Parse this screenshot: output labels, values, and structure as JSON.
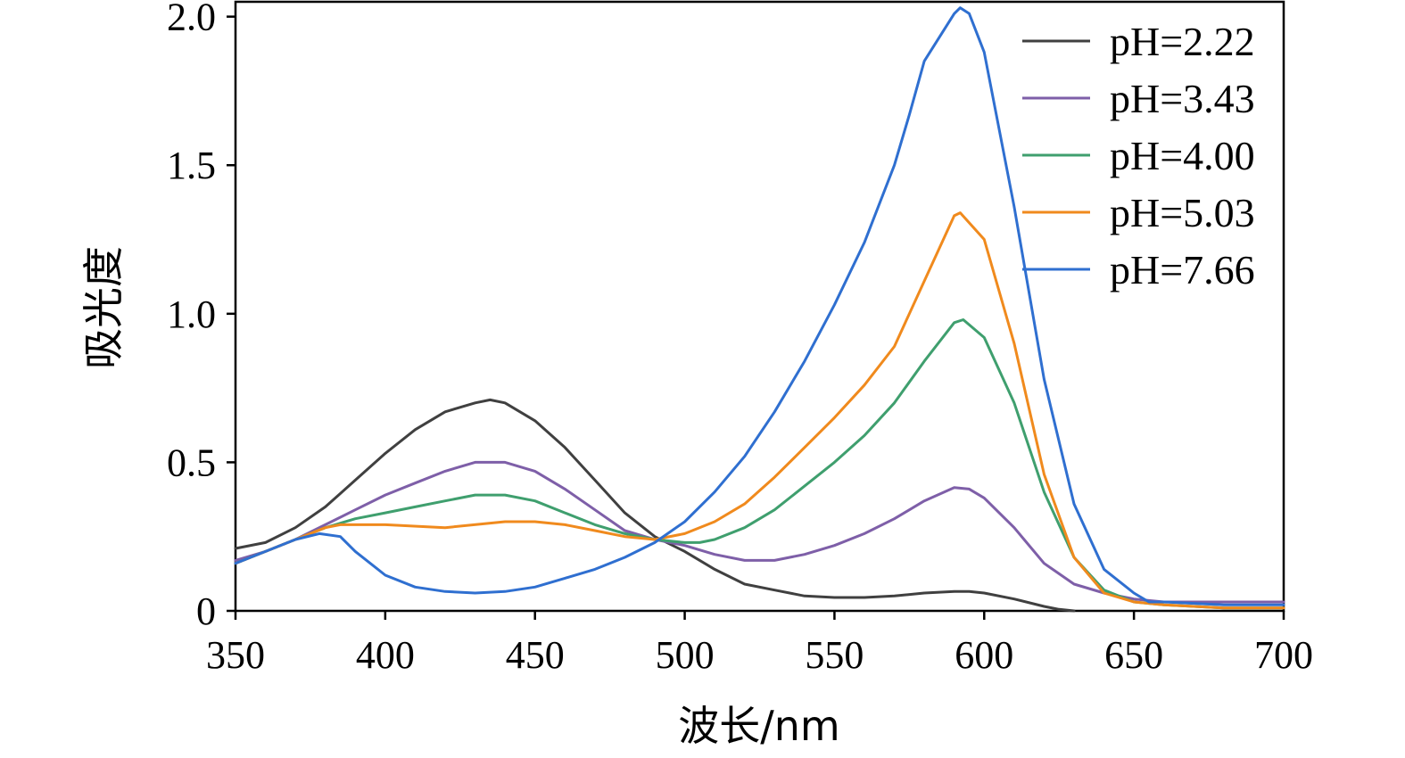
{
  "chart_data": {
    "type": "line",
    "xlabel": "波长/nm",
    "ylabel": "吸光度",
    "xlim": [
      350,
      700
    ],
    "ylim": [
      0,
      2.05
    ],
    "xticks": [
      350,
      400,
      450,
      500,
      550,
      600,
      650,
      700
    ],
    "yticks": [
      0,
      0.5,
      1.0,
      1.5,
      2.0
    ],
    "ytick_labels": [
      "0",
      "0.5",
      "1.0",
      "1.5",
      "2.0"
    ],
    "grid": false,
    "legend_position": "top-right",
    "series": [
      {
        "name": "pH=2.22",
        "color": "#404040",
        "x": [
          350,
          360,
          370,
          380,
          390,
          400,
          410,
          420,
          430,
          435,
          440,
          450,
          460,
          470,
          480,
          490,
          500,
          510,
          520,
          530,
          540,
          550,
          560,
          570,
          580,
          590,
          595,
          600,
          610,
          620,
          625,
          630
        ],
        "y": [
          0.21,
          0.23,
          0.28,
          0.35,
          0.44,
          0.53,
          0.61,
          0.67,
          0.7,
          0.71,
          0.7,
          0.64,
          0.55,
          0.44,
          0.33,
          0.25,
          0.2,
          0.14,
          0.09,
          0.07,
          0.05,
          0.045,
          0.045,
          0.05,
          0.06,
          0.065,
          0.065,
          0.06,
          0.04,
          0.015,
          0.005,
          0.0
        ]
      },
      {
        "name": "pH=3.43",
        "color": "#7e5fa8",
        "x": [
          350,
          360,
          370,
          380,
          390,
          400,
          410,
          420,
          430,
          435,
          440,
          450,
          460,
          470,
          480,
          490,
          500,
          510,
          520,
          530,
          540,
          550,
          560,
          570,
          580,
          590,
          595,
          600,
          610,
          620,
          630,
          640,
          650,
          660,
          680,
          700
        ],
        "y": [
          0.17,
          0.2,
          0.24,
          0.29,
          0.34,
          0.39,
          0.43,
          0.47,
          0.5,
          0.5,
          0.5,
          0.47,
          0.41,
          0.34,
          0.27,
          0.24,
          0.22,
          0.19,
          0.17,
          0.17,
          0.19,
          0.22,
          0.26,
          0.31,
          0.37,
          0.415,
          0.41,
          0.38,
          0.28,
          0.16,
          0.09,
          0.06,
          0.04,
          0.03,
          0.03,
          0.03
        ]
      },
      {
        "name": "pH=4.00",
        "color": "#3f9f6e",
        "x": [
          350,
          360,
          370,
          380,
          390,
          400,
          410,
          420,
          430,
          440,
          450,
          460,
          470,
          480,
          490,
          500,
          505,
          510,
          520,
          530,
          540,
          550,
          560,
          570,
          580,
          590,
          593,
          600,
          610,
          620,
          630,
          640,
          650,
          660,
          680,
          700
        ],
        "y": [
          0.16,
          0.2,
          0.24,
          0.28,
          0.31,
          0.33,
          0.35,
          0.37,
          0.39,
          0.39,
          0.37,
          0.33,
          0.29,
          0.26,
          0.24,
          0.23,
          0.23,
          0.24,
          0.28,
          0.34,
          0.42,
          0.5,
          0.59,
          0.7,
          0.84,
          0.97,
          0.98,
          0.92,
          0.7,
          0.4,
          0.18,
          0.07,
          0.03,
          0.02,
          0.01,
          0.01
        ]
      },
      {
        "name": "pH=5.03",
        "color": "#f08a1d",
        "x": [
          350,
          360,
          370,
          380,
          385,
          390,
          400,
          420,
          440,
          450,
          460,
          470,
          480,
          490,
          500,
          510,
          520,
          530,
          540,
          550,
          560,
          570,
          580,
          590,
          592,
          600,
          610,
          620,
          630,
          640,
          650,
          660,
          680,
          700
        ],
        "y": [
          0.16,
          0.2,
          0.24,
          0.28,
          0.29,
          0.29,
          0.29,
          0.28,
          0.3,
          0.3,
          0.29,
          0.27,
          0.25,
          0.24,
          0.26,
          0.3,
          0.36,
          0.45,
          0.55,
          0.65,
          0.76,
          0.89,
          1.11,
          1.33,
          1.34,
          1.25,
          0.9,
          0.46,
          0.18,
          0.06,
          0.03,
          0.02,
          0.01,
          0.01
        ]
      },
      {
        "name": "pH=7.66",
        "color": "#2f6fd0",
        "x": [
          350,
          360,
          370,
          378,
          385,
          390,
          400,
          410,
          420,
          430,
          440,
          450,
          460,
          470,
          480,
          490,
          500,
          510,
          520,
          530,
          540,
          550,
          560,
          570,
          575,
          580,
          590,
          592,
          595,
          600,
          610,
          620,
          630,
          640,
          650,
          655,
          660,
          680,
          700
        ],
        "y": [
          0.16,
          0.2,
          0.24,
          0.26,
          0.25,
          0.2,
          0.12,
          0.08,
          0.065,
          0.06,
          0.065,
          0.08,
          0.11,
          0.14,
          0.18,
          0.23,
          0.3,
          0.4,
          0.52,
          0.67,
          0.84,
          1.03,
          1.24,
          1.5,
          1.67,
          1.85,
          2.01,
          2.03,
          2.01,
          1.88,
          1.36,
          0.78,
          0.36,
          0.14,
          0.06,
          0.03,
          0.03,
          0.02,
          0.02
        ]
      }
    ]
  }
}
